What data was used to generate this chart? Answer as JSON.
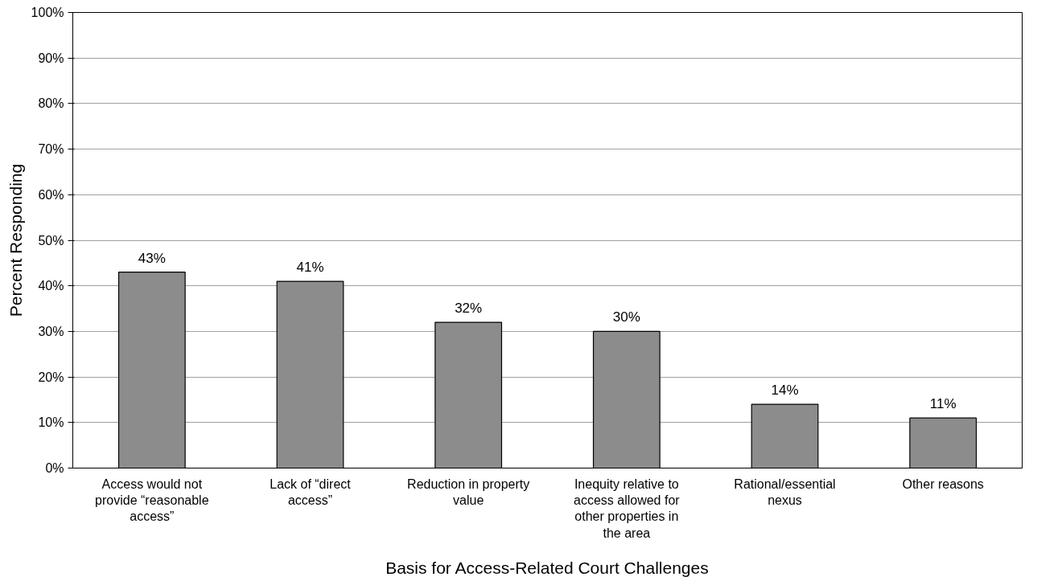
{
  "chart_data": {
    "type": "bar",
    "xlabel": "Basis for Access-Related Court Challenges",
    "ylabel": "Percent Responding",
    "categories": [
      "Access would not provide “reasonable access”",
      "Lack of “direct access”",
      "Reduction in property value",
      "Inequity relative to access allowed for other properties in the area",
      "Rational/essential nexus",
      "Other reasons"
    ],
    "values": [
      43,
      41,
      32,
      30,
      14,
      11
    ],
    "value_labels": [
      "43%",
      "41%",
      "32%",
      "30%",
      "14%",
      "11%"
    ],
    "color": "#8c8c8c",
    "ylim": [
      0,
      100
    ],
    "yticks": [
      {
        "value": 0,
        "label": "0%"
      },
      {
        "value": 10,
        "label": "10%"
      },
      {
        "value": 20,
        "label": "20%"
      },
      {
        "value": 30,
        "label": "30%"
      },
      {
        "value": 40,
        "label": "40%"
      },
      {
        "value": 50,
        "label": "50%"
      },
      {
        "value": 60,
        "label": "60%"
      },
      {
        "value": 70,
        "label": "70%"
      },
      {
        "value": 80,
        "label": "80%"
      },
      {
        "value": 90,
        "label": "90%"
      },
      {
        "value": 100,
        "label": "100%"
      }
    ],
    "grid": "y"
  }
}
